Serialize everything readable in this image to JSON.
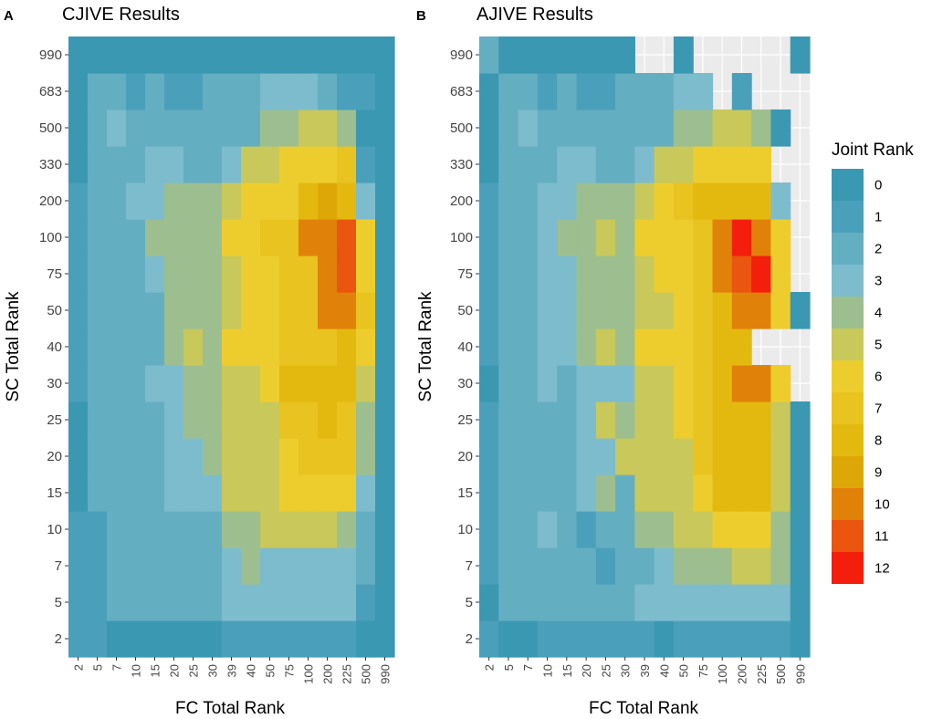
{
  "panels": [
    {
      "letter": "A",
      "title": "CJIVE Results"
    },
    {
      "letter": "B",
      "title": "AJIVE Results"
    }
  ],
  "legend": {
    "title": "Joint Rank",
    "levels": [
      "0",
      "1",
      "2",
      "3",
      "4",
      "5",
      "6",
      "7",
      "8",
      "9",
      "10",
      "11",
      "12"
    ],
    "colors": [
      "#3a98b2",
      "#4aa0ba",
      "#64aec2",
      "#7dbccd",
      "#9dbf8f",
      "#c9c85a",
      "#edcd2e",
      "#e9c31f",
      "#e4b90f",
      "#dda807",
      "#e0820a",
      "#ea5510",
      "#f31f0c"
    ]
  },
  "chart_data": [
    {
      "type": "heatmap",
      "title": "CJIVE Results",
      "xlabel": "FC Total Rank",
      "ylabel": "SC Total Rank",
      "x_categories": [
        "2",
        "5",
        "7",
        "10",
        "15",
        "20",
        "25",
        "30",
        "39",
        "40",
        "50",
        "75",
        "100",
        "200",
        "225",
        "500",
        "990"
      ],
      "y_categories": [
        "2",
        "5",
        "7",
        "10",
        "15",
        "20",
        "25",
        "30",
        "40",
        "50",
        "75",
        "100",
        "200",
        "330",
        "500",
        "683",
        "990"
      ],
      "missing_color": "#ebebeb",
      "values": [
        [
          1,
          1,
          0,
          0,
          0,
          0,
          0,
          0,
          1,
          1,
          1,
          1,
          1,
          1,
          1,
          0,
          0
        ],
        [
          1,
          1,
          2,
          2,
          2,
          2,
          2,
          2,
          3,
          3,
          3,
          3,
          3,
          3,
          3,
          1,
          0
        ],
        [
          1,
          1,
          2,
          2,
          2,
          2,
          2,
          2,
          3,
          4,
          3,
          3,
          3,
          3,
          3,
          2,
          0
        ],
        [
          1,
          1,
          2,
          2,
          2,
          2,
          2,
          2,
          4,
          4,
          5,
          5,
          5,
          5,
          4,
          2,
          0
        ],
        [
          0,
          2,
          2,
          2,
          2,
          3,
          3,
          3,
          5,
          5,
          5,
          6,
          6,
          6,
          6,
          3,
          0
        ],
        [
          0,
          2,
          2,
          2,
          2,
          3,
          3,
          4,
          5,
          5,
          5,
          6,
          7,
          7,
          7,
          4,
          0
        ],
        [
          0,
          2,
          2,
          2,
          2,
          3,
          4,
          4,
          5,
          5,
          5,
          7,
          7,
          8,
          7,
          4,
          0
        ],
        [
          1,
          2,
          2,
          2,
          3,
          3,
          4,
          4,
          5,
          5,
          6,
          8,
          8,
          8,
          8,
          5,
          0
        ],
        [
          1,
          2,
          2,
          2,
          2,
          4,
          5,
          4,
          6,
          6,
          6,
          7,
          7,
          7,
          8,
          6,
          0
        ],
        [
          1,
          2,
          2,
          2,
          2,
          4,
          4,
          4,
          5,
          6,
          6,
          7,
          7,
          10,
          10,
          7,
          0
        ],
        [
          1,
          2,
          2,
          2,
          3,
          4,
          4,
          4,
          5,
          6,
          6,
          7,
          7,
          10,
          11,
          6,
          0
        ],
        [
          1,
          2,
          2,
          2,
          4,
          4,
          4,
          4,
          6,
          6,
          7,
          7,
          10,
          10,
          11,
          6,
          0
        ],
        [
          1,
          2,
          2,
          3,
          3,
          4,
          4,
          4,
          5,
          6,
          6,
          6,
          8,
          9,
          8,
          3,
          0
        ],
        [
          0,
          2,
          2,
          2,
          3,
          3,
          2,
          2,
          3,
          5,
          5,
          6,
          6,
          6,
          7,
          1,
          0
        ],
        [
          0,
          2,
          3,
          2,
          2,
          2,
          2,
          2,
          2,
          2,
          4,
          4,
          5,
          5,
          4,
          0,
          0
        ],
        [
          0,
          2,
          2,
          1,
          2,
          1,
          1,
          2,
          2,
          2,
          3,
          3,
          3,
          2,
          1,
          1,
          0
        ],
        [
          0,
          0,
          0,
          0,
          0,
          0,
          0,
          0,
          0,
          0,
          0,
          0,
          0,
          0,
          0,
          0,
          0
        ]
      ]
    },
    {
      "type": "heatmap",
      "title": "AJIVE Results",
      "xlabel": "FC Total Rank",
      "ylabel": "SC Total Rank",
      "x_categories": [
        "2",
        "5",
        "7",
        "10",
        "15",
        "20",
        "25",
        "30",
        "39",
        "40",
        "50",
        "75",
        "100",
        "200",
        "225",
        "500",
        "990"
      ],
      "y_categories": [
        "2",
        "5",
        "7",
        "10",
        "15",
        "20",
        "25",
        "30",
        "40",
        "50",
        "75",
        "100",
        "200",
        "330",
        "500",
        "683",
        "990"
      ],
      "missing_color": "#ebebeb",
      "values": [
        [
          1,
          0,
          0,
          1,
          1,
          1,
          1,
          1,
          1,
          0,
          1,
          1,
          1,
          1,
          1,
          1,
          0
        ],
        [
          0,
          2,
          2,
          2,
          2,
          2,
          2,
          2,
          3,
          3,
          3,
          3,
          3,
          3,
          3,
          3,
          0
        ],
        [
          1,
          2,
          2,
          2,
          2,
          2,
          1,
          2,
          2,
          3,
          4,
          4,
          4,
          5,
          5,
          4,
          0
        ],
        [
          1,
          2,
          2,
          3,
          2,
          1,
          2,
          2,
          4,
          4,
          5,
          5,
          6,
          6,
          6,
          4,
          0
        ],
        [
          1,
          2,
          2,
          2,
          2,
          3,
          4,
          2,
          5,
          5,
          5,
          6,
          8,
          8,
          8,
          5,
          0
        ],
        [
          1,
          2,
          2,
          2,
          2,
          3,
          3,
          5,
          5,
          5,
          5,
          7,
          8,
          8,
          8,
          5,
          0
        ],
        [
          1,
          2,
          2,
          2,
          2,
          3,
          5,
          4,
          5,
          5,
          6,
          7,
          8,
          8,
          8,
          5,
          0
        ],
        [
          0,
          2,
          2,
          3,
          2,
          3,
          3,
          3,
          5,
          5,
          6,
          7,
          8,
          10,
          10,
          6,
          null
        ],
        [
          1,
          2,
          2,
          3,
          3,
          4,
          5,
          4,
          6,
          6,
          6,
          7,
          8,
          8,
          null,
          null,
          null
        ],
        [
          1,
          2,
          2,
          3,
          3,
          4,
          4,
          4,
          5,
          5,
          6,
          7,
          8,
          10,
          10,
          6,
          0
        ],
        [
          1,
          2,
          2,
          3,
          3,
          4,
          4,
          4,
          5,
          6,
          6,
          7,
          10,
          11,
          12,
          6,
          null
        ],
        [
          1,
          2,
          2,
          3,
          4,
          4,
          5,
          4,
          6,
          6,
          6,
          7,
          10,
          12,
          10,
          6,
          null
        ],
        [
          1,
          2,
          2,
          3,
          3,
          4,
          4,
          4,
          5,
          6,
          7,
          8,
          8,
          8,
          8,
          3,
          null
        ],
        [
          0,
          2,
          2,
          2,
          3,
          3,
          2,
          2,
          3,
          5,
          5,
          6,
          6,
          6,
          6,
          null,
          null
        ],
        [
          0,
          2,
          3,
          2,
          2,
          2,
          2,
          2,
          2,
          2,
          4,
          4,
          5,
          5,
          4,
          0,
          null
        ],
        [
          0,
          2,
          2,
          1,
          2,
          1,
          1,
          2,
          2,
          2,
          3,
          3,
          null,
          1,
          null,
          null,
          null
        ],
        [
          2,
          0,
          0,
          0,
          0,
          0,
          0,
          0,
          null,
          null,
          0,
          null,
          null,
          null,
          null,
          null,
          0
        ]
      ]
    }
  ]
}
